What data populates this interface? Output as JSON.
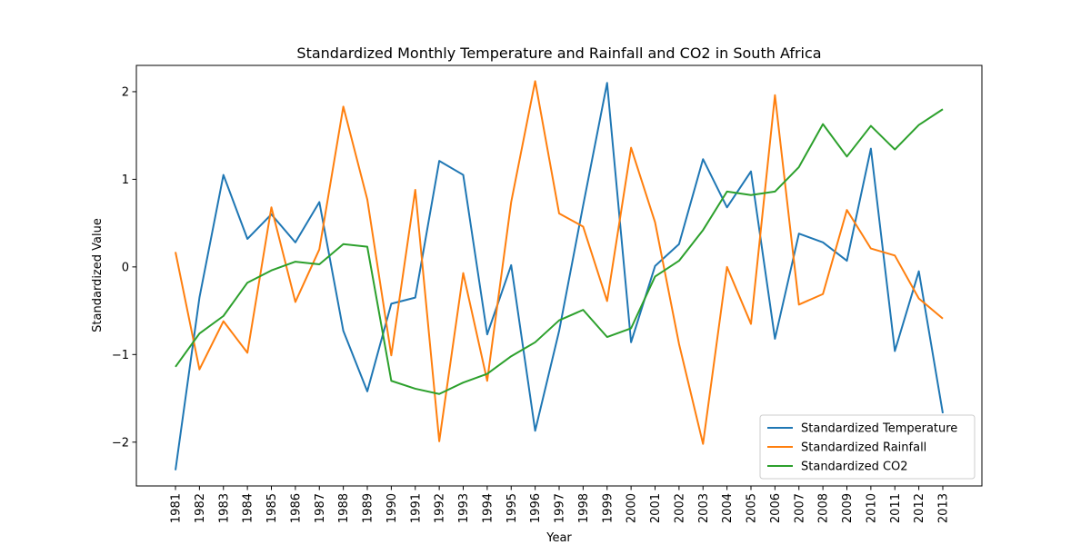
{
  "chart_data": {
    "type": "line",
    "title": "Standardized Monthly Temperature and Rainfall and CO2 in South Africa",
    "xlabel": "Year",
    "ylabel": "Standardized Value",
    "ylim": [
      -2.5,
      2.3
    ],
    "yticks": [
      -2,
      -1,
      0,
      1,
      2
    ],
    "yticklabels": [
      "−2",
      "−1",
      "0",
      "1",
      "2"
    ],
    "grid": false,
    "legend_position": "lower-right",
    "categories": [
      "1981",
      "1982",
      "1983",
      "1984",
      "1985",
      "1986",
      "1987",
      "1988",
      "1989",
      "1990",
      "1991",
      "1992",
      "1993",
      "1994",
      "1995",
      "1996",
      "1997",
      "1998",
      "1999",
      "2000",
      "2001",
      "2002",
      "2003",
      "2004",
      "2005",
      "2006",
      "2007",
      "2008",
      "2009",
      "2010",
      "2011",
      "2012",
      "2013"
    ],
    "series": [
      {
        "name": "Standardized Temperature",
        "color": "#1f77b4",
        "values": [
          -2.32,
          -0.35,
          1.05,
          0.32,
          0.6,
          0.28,
          0.74,
          -0.73,
          -1.42,
          -0.42,
          -0.35,
          1.21,
          1.05,
          -0.77,
          0.02,
          -1.87,
          -0.73,
          0.7,
          2.1,
          -0.86,
          0.01,
          0.26,
          1.23,
          0.68,
          1.09,
          -0.82,
          0.38,
          0.28,
          0.07,
          1.35,
          -0.96,
          -0.05,
          -1.67
        ]
      },
      {
        "name": "Standardized Rainfall",
        "color": "#ff7f0e",
        "values": [
          0.17,
          -1.17,
          -0.62,
          -0.98,
          0.68,
          -0.4,
          0.2,
          1.83,
          0.77,
          -1.01,
          0.88,
          -1.99,
          -0.07,
          -1.3,
          0.74,
          2.12,
          0.61,
          0.46,
          -0.39,
          1.36,
          0.51,
          -0.88,
          -2.02,
          0.0,
          -0.65,
          1.96,
          -0.43,
          -0.31,
          0.65,
          0.21,
          0.13,
          -0.36,
          -0.59
        ]
      },
      {
        "name": "Standardized CO2",
        "color": "#2ca02c",
        "values": [
          -1.14,
          -0.76,
          -0.56,
          -0.18,
          -0.04,
          0.06,
          0.03,
          0.26,
          0.23,
          -1.3,
          -1.39,
          -1.45,
          -1.32,
          -1.22,
          -1.02,
          -0.86,
          -0.61,
          -0.49,
          -0.8,
          -0.7,
          -0.11,
          0.07,
          0.42,
          0.86,
          0.82,
          0.86,
          1.14,
          1.63,
          1.26,
          1.61,
          1.34,
          1.62,
          1.8
        ]
      }
    ]
  }
}
